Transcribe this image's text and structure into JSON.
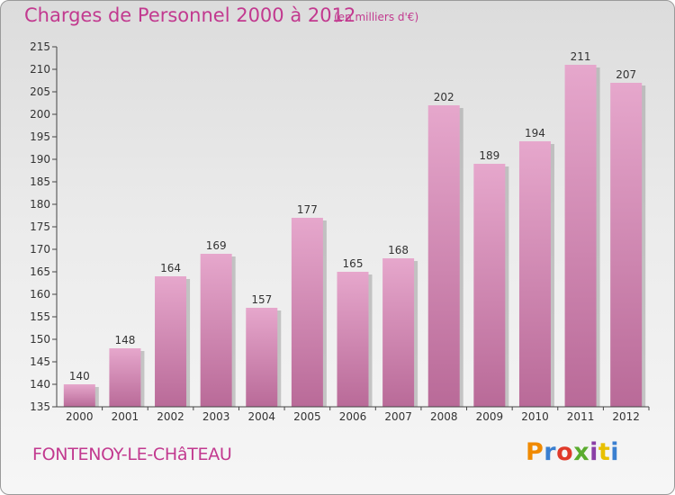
{
  "header": {
    "title": "Charges de Personnel 2000 à 2012",
    "subtitle": "(en milliers d'€)"
  },
  "footer": {
    "commune": "FONTENOY-LE-CHâTEAU",
    "brand": {
      "text": "Proxiti",
      "letter_colors": [
        "#f08a00",
        "#3a7fd0",
        "#e03a2a",
        "#5aac2e",
        "#8a3ea6",
        "#e8c000",
        "#3a7fd0"
      ]
    }
  },
  "colors": {
    "bar_top": "#e6a7cc",
    "bar_bottom": "#b96a98",
    "bar_shadow": "#9f9f9f",
    "axis": "#444444",
    "text": "#333333"
  },
  "chart_data": {
    "type": "bar",
    "categories": [
      "2000",
      "2001",
      "2002",
      "2003",
      "2004",
      "2005",
      "2006",
      "2007",
      "2008",
      "2009",
      "2010",
      "2011",
      "2012"
    ],
    "values": [
      140,
      148,
      164,
      169,
      157,
      177,
      165,
      168,
      202,
      189,
      194,
      211,
      207
    ],
    "ylim": [
      135,
      215
    ],
    "yticks": [
      135,
      140,
      145,
      150,
      155,
      160,
      165,
      170,
      175,
      180,
      185,
      190,
      195,
      200,
      205,
      210,
      215
    ],
    "data_labels": true,
    "grid": false,
    "legend": "none"
  }
}
